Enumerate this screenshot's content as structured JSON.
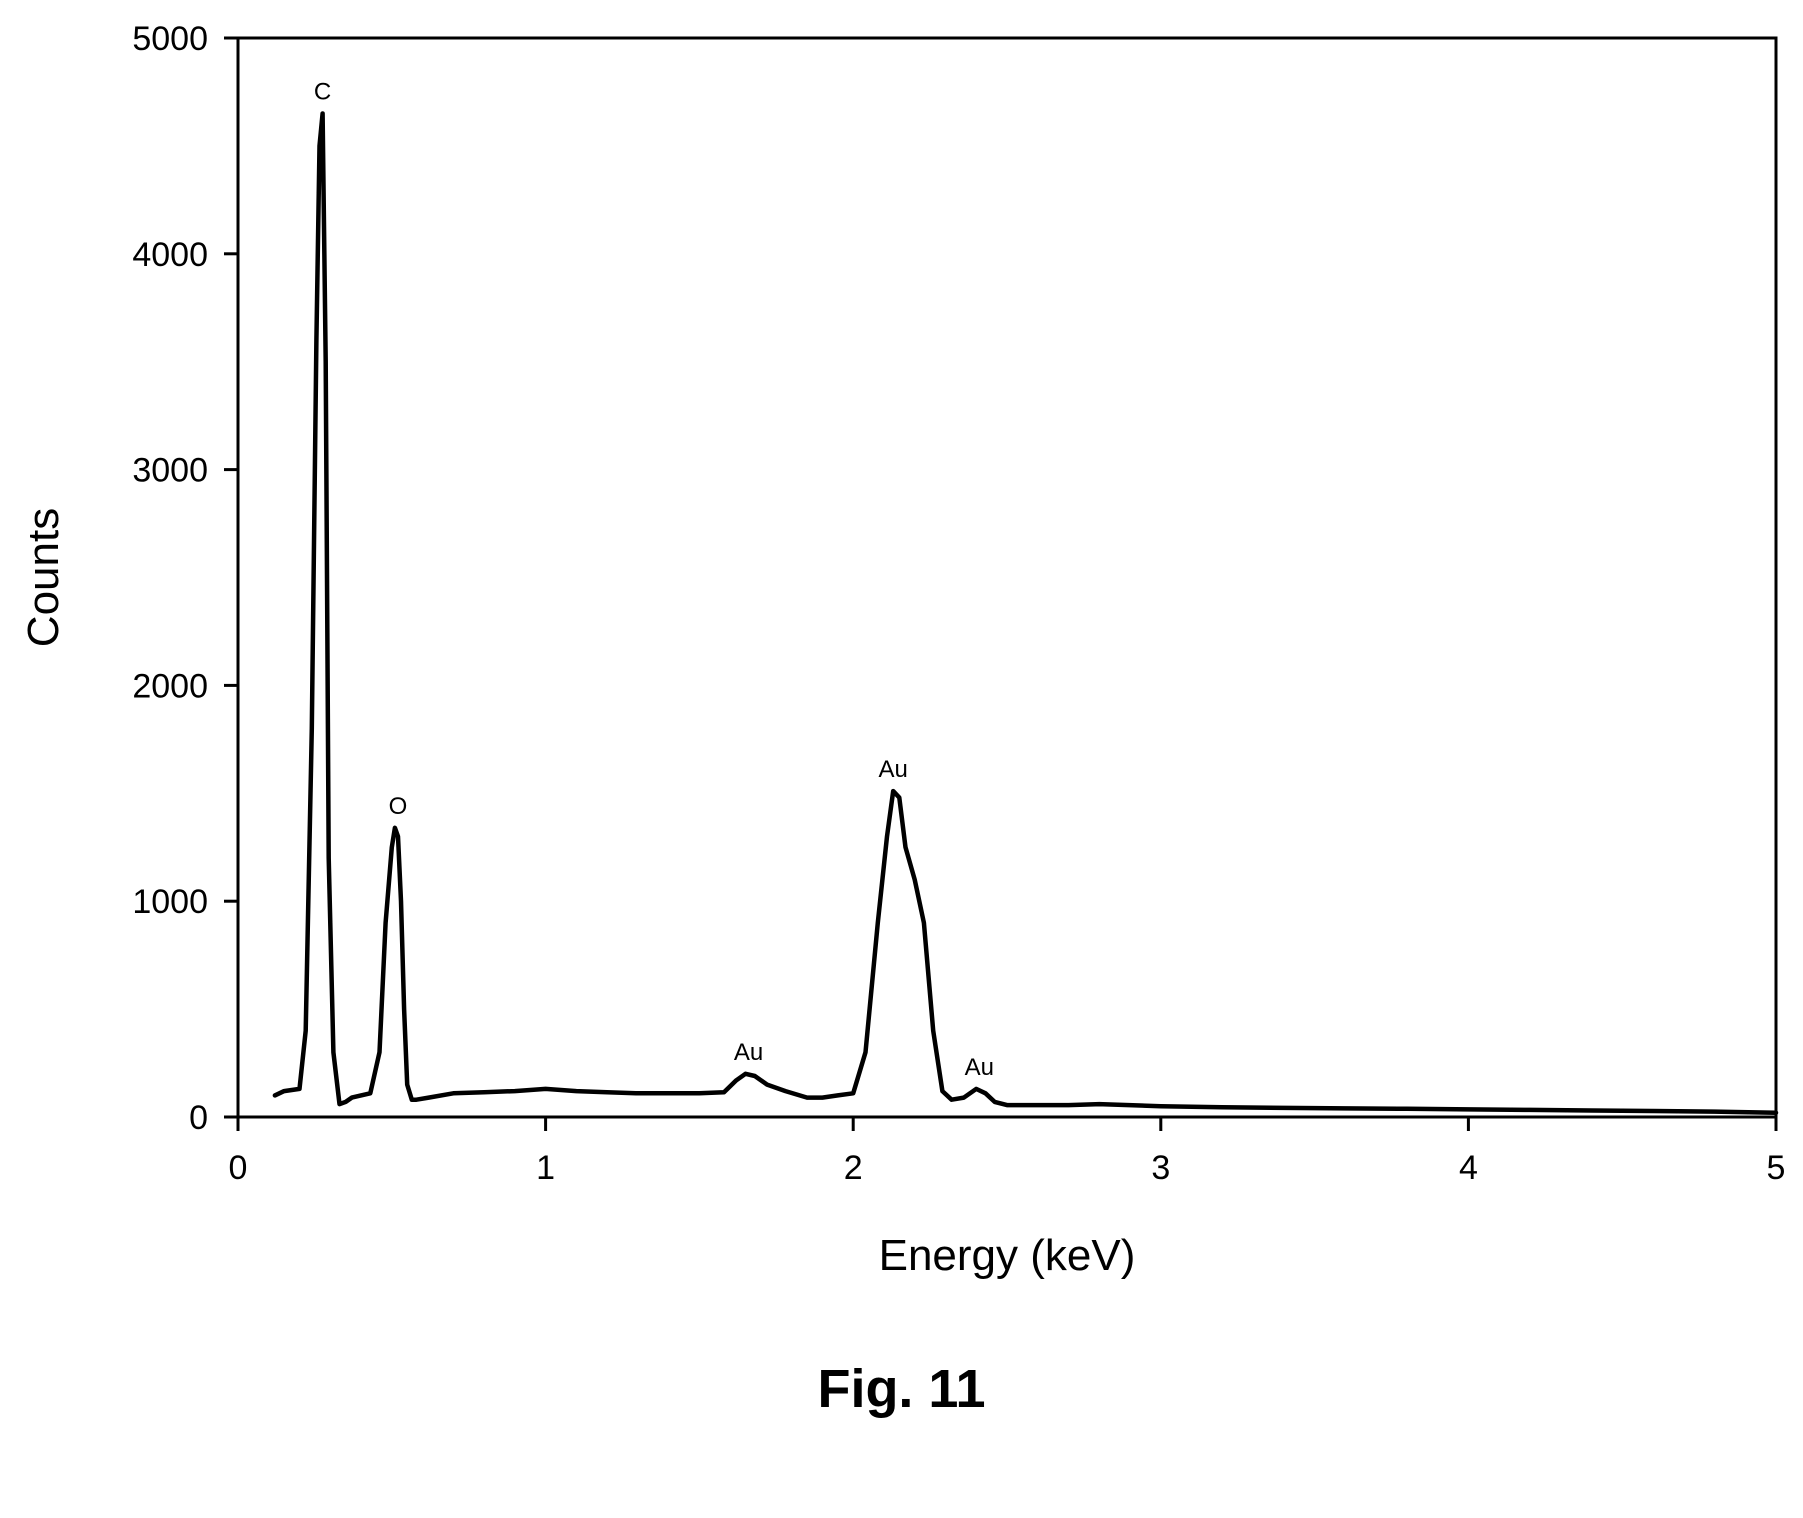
{
  "figure": {
    "caption": "Fig. 11"
  },
  "chart_data": {
    "type": "line",
    "title": "",
    "xlabel": "Energy (keV)",
    "ylabel": "Counts",
    "xlim": [
      0,
      5
    ],
    "ylim": [
      0,
      5000
    ],
    "xticks": [
      0,
      1,
      2,
      3,
      4,
      5
    ],
    "yticks": [
      0,
      1000,
      2000,
      3000,
      4000,
      5000
    ],
    "grid": false,
    "legend": "none",
    "line_color": "#000000",
    "series": [
      {
        "x": [
          0.12,
          0.15,
          0.2,
          0.22,
          0.24,
          0.255,
          0.265,
          0.275,
          0.285,
          0.295,
          0.31,
          0.33,
          0.35,
          0.37,
          0.4,
          0.43,
          0.46,
          0.48,
          0.5,
          0.51,
          0.52,
          0.53,
          0.54,
          0.55,
          0.565,
          0.58,
          0.62,
          0.7,
          0.8,
          0.9,
          1.0,
          1.1,
          1.2,
          1.3,
          1.4,
          1.5,
          1.58,
          1.62,
          1.65,
          1.68,
          1.72,
          1.78,
          1.85,
          1.9,
          1.95,
          2.0,
          2.04,
          2.08,
          2.11,
          2.13,
          2.15,
          2.17,
          2.2,
          2.23,
          2.26,
          2.29,
          2.32,
          2.36,
          2.4,
          2.43,
          2.46,
          2.5,
          2.6,
          2.7,
          2.8,
          3.0,
          3.2,
          3.4,
          3.6,
          3.8,
          4.0,
          4.2,
          4.4,
          4.6,
          4.8,
          5.0
        ],
        "y": [
          100,
          120,
          130,
          400,
          1800,
          3600,
          4500,
          4650,
          3500,
          1200,
          300,
          60,
          70,
          90,
          100,
          110,
          300,
          900,
          1250,
          1340,
          1300,
          1000,
          500,
          150,
          80,
          80,
          90,
          110,
          115,
          120,
          130,
          120,
          115,
          110,
          110,
          110,
          115,
          170,
          200,
          190,
          150,
          120,
          90,
          90,
          100,
          110,
          300,
          900,
          1300,
          1510,
          1480,
          1250,
          1100,
          900,
          400,
          120,
          80,
          90,
          130,
          110,
          70,
          55,
          55,
          55,
          60,
          50,
          45,
          42,
          40,
          38,
          35,
          33,
          30,
          28,
          25,
          20
        ]
      }
    ],
    "annotations": [
      {
        "text": "C",
        "x": 0.275,
        "y": 4650
      },
      {
        "text": "O",
        "x": 0.52,
        "y": 1340
      },
      {
        "text": "Au",
        "x": 1.66,
        "y": 200
      },
      {
        "text": "Au",
        "x": 2.13,
        "y": 1510
      },
      {
        "text": "Au",
        "x": 2.41,
        "y": 130
      }
    ]
  }
}
